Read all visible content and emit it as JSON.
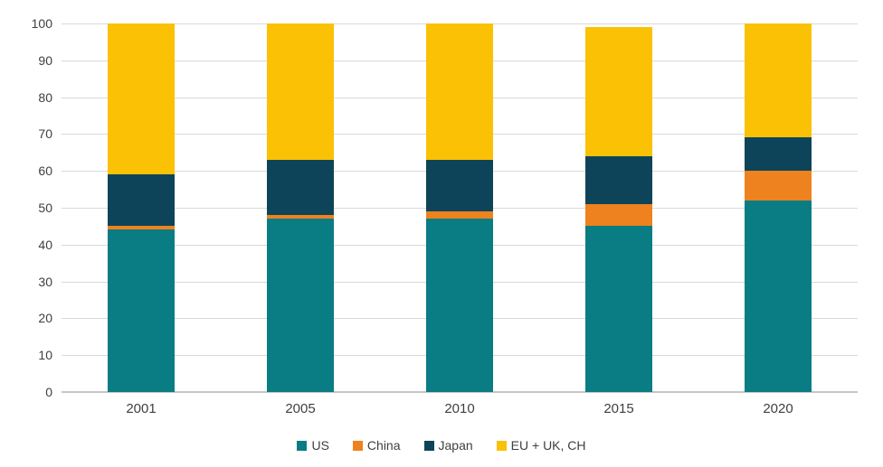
{
  "chart_data": {
    "type": "bar",
    "stacked": true,
    "title": "",
    "xlabel": "",
    "ylabel": "",
    "ylim": [
      0,
      100
    ],
    "yticks": [
      0,
      10,
      20,
      30,
      40,
      50,
      60,
      70,
      80,
      90,
      100
    ],
    "grid": true,
    "legend_position": "bottom",
    "categories": [
      "2001",
      "2005",
      "2010",
      "2015",
      "2020"
    ],
    "series": [
      {
        "name": "US",
        "color": "#0a7c83",
        "values": [
          44,
          47,
          47,
          45,
          52
        ]
      },
      {
        "name": "China",
        "color": "#ee821e",
        "values": [
          1,
          1,
          2,
          6,
          8
        ]
      },
      {
        "name": "Japan",
        "color": "#0e4459",
        "values": [
          14,
          15,
          14,
          13,
          9
        ]
      },
      {
        "name": "EU + UK, CH",
        "color": "#fac105",
        "values": [
          41,
          37,
          37,
          35,
          31
        ]
      }
    ],
    "totals": [
      100,
      100,
      100,
      99,
      100
    ]
  },
  "colors": {
    "gridline": "#d9d9d9",
    "axis_line": "#c3c7c8",
    "tick_text": "#3f3f3f"
  }
}
